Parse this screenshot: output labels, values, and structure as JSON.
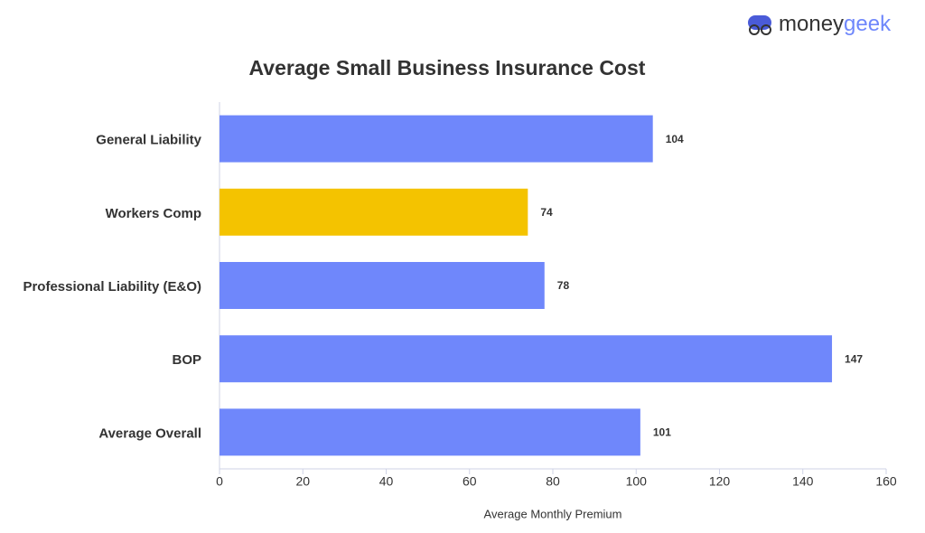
{
  "logo": {
    "part1": "money",
    "part2": "geek"
  },
  "chart_data": {
    "type": "hbar",
    "title": "Average Small Business Insurance Cost",
    "x_label": "Average Monthly Premium",
    "categories": [
      "General Liability",
      "Workers Comp",
      "Professional Liability (E&O)",
      "BOP",
      "Average Overall"
    ],
    "values": [
      104,
      74,
      78,
      147,
      101
    ],
    "colors": [
      "#6f87fb",
      "#f4c300",
      "#6f87fb",
      "#6f87fb",
      "#6f87fb"
    ],
    "xlim": [
      0,
      160
    ],
    "xticks": [
      0,
      20,
      40,
      60,
      80,
      100,
      120,
      140,
      160
    ],
    "grid": false
  }
}
